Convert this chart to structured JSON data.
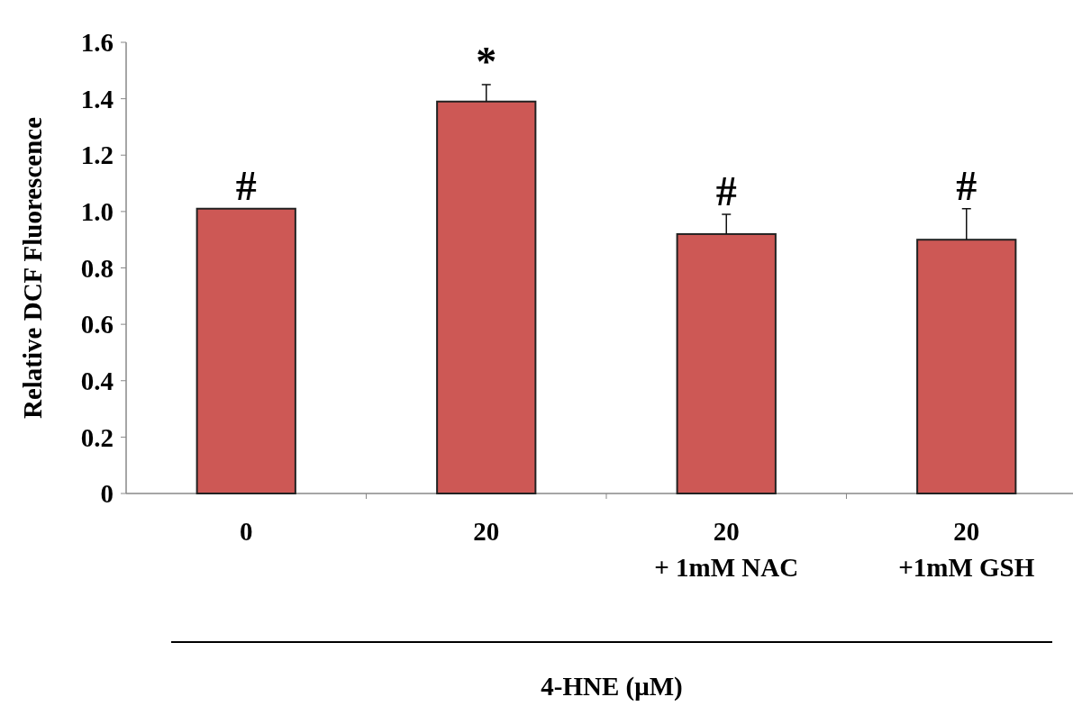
{
  "chart_data": {
    "type": "bar",
    "xlabel": "4-HNE (μM)",
    "ylabel": "Relative DCF Fluorescence",
    "categories": [
      "0",
      "20",
      "20\n+ 1mM NAC",
      "20\n+1mM GSH"
    ],
    "values": [
      1.01,
      1.39,
      0.92,
      0.9
    ],
    "errors": [
      null,
      [
        1.39,
        1.45
      ],
      [
        0.92,
        0.99
      ],
      [
        0.9,
        1.01
      ]
    ],
    "value_labels": [
      "#",
      "*",
      "#",
      "#"
    ],
    "color": "#cd5855",
    "ylim": [
      0,
      1.6
    ],
    "yticks": [
      0,
      {
        "value": 0.2,
        "label": "0.2"
      },
      {
        "value": 0.4,
        "label": "0.4"
      },
      {
        "value": 0.6,
        "label": "0.6"
      },
      {
        "value": 0.8,
        "label": "0.8"
      },
      {
        "value": 1,
        "label": "1.0"
      },
      {
        "value": 1.2,
        "label": "1.2"
      },
      {
        "value": 1.4,
        "label": "1.4"
      },
      {
        "value": 1.6,
        "label": "1.6"
      }
    ],
    "grid": false
  }
}
